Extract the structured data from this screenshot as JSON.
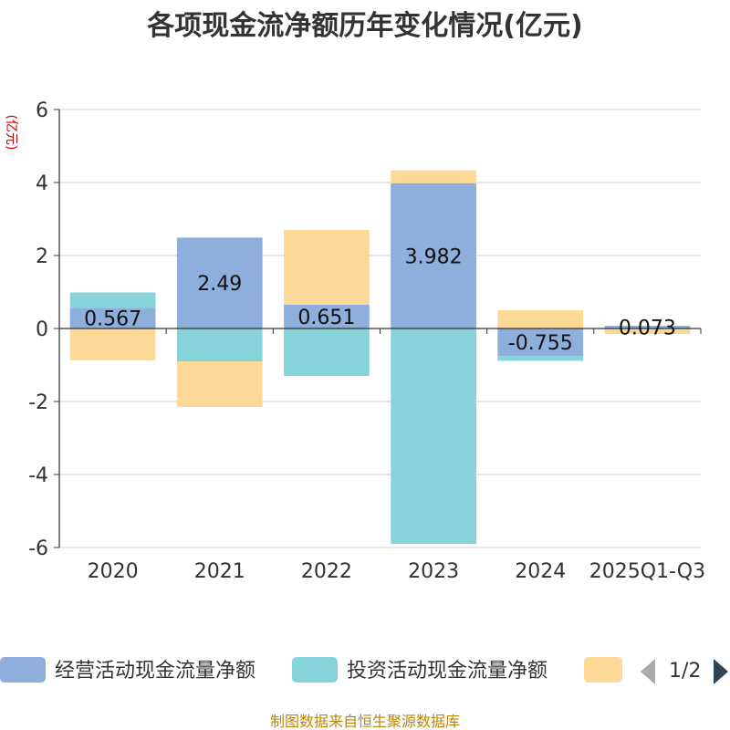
{
  "colors": {
    "operating": "#8eaedb",
    "investing": "#86d4d9",
    "financing": "#fdd897",
    "axis": "#333333",
    "grid": "#cccccc",
    "unit_label": "#cc0000",
    "source": "#b8860b",
    "pager_inactive": "#aaaaaa",
    "pager_active": "#2f4554"
  },
  "chart_data": {
    "type": "bar",
    "stacked": true,
    "title": "各项现金流净额历年变化情况(亿元)",
    "ylabel": "(亿元)",
    "ylim": [
      -6,
      6
    ],
    "yticks": [
      -6,
      -4,
      -2,
      0,
      2,
      4,
      6
    ],
    "categories": [
      "2020",
      "2021",
      "2022",
      "2023",
      "2024",
      "2025Q1-Q3"
    ],
    "series": [
      {
        "name": "经营活动现金流量净额",
        "values": [
          0.567,
          2.49,
          0.651,
          3.982,
          -0.755,
          0.073
        ],
        "labels": [
          "0.567",
          "2.49",
          "0.651",
          "3.982",
          "-0.755",
          "0.073"
        ]
      },
      {
        "name": "投资活动现金流量净额",
        "values": [
          0.42,
          -0.9,
          -1.3,
          -5.9,
          -0.13,
          -0.02
        ]
      },
      {
        "name": "",
        "values": [
          -0.87,
          -1.25,
          2.05,
          0.35,
          0.5,
          -0.13
        ]
      }
    ],
    "legend": {
      "position": "bottom",
      "page": "1/2"
    },
    "source": "制图数据来自恒生聚源数据库"
  }
}
